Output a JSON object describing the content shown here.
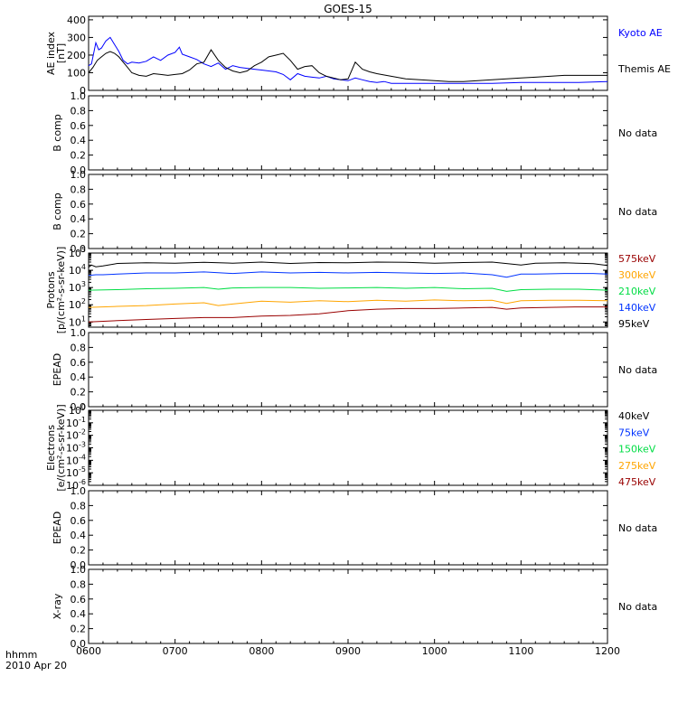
{
  "title": "GOES-15",
  "time_axis": {
    "label_line1": "hhmm",
    "label_line2": "2010 Apr 20",
    "range": [
      360,
      720
    ],
    "ticks": [
      {
        "value": 360,
        "label": "0600"
      },
      {
        "value": 420,
        "label": "0700"
      },
      {
        "value": 480,
        "label": "0800"
      },
      {
        "value": 540,
        "label": "0900"
      },
      {
        "value": 600,
        "label": "1000"
      },
      {
        "value": 660,
        "label": "1100"
      },
      {
        "value": 720,
        "label": "1200"
      }
    ]
  },
  "colors": {
    "kyoto": "#0000ff",
    "themis": "#000000",
    "p575": "#990000",
    "p300": "#ffa500",
    "p210": "#00dd44",
    "p140": "#0033ff",
    "p95": "#000000",
    "e475": "#990000",
    "e275": "#ffa500",
    "e150": "#00dd44",
    "e75": "#0033ff",
    "e40": "#000000"
  },
  "no_data_label": "No data",
  "chart_data": [
    {
      "id": "ae",
      "type": "line",
      "ylabel": "AE index",
      "ylabel2": "[nT]",
      "ylim": [
        0,
        420
      ],
      "yticks": [
        {
          "value": 0,
          "label": "0"
        },
        {
          "value": 100,
          "label": "100"
        },
        {
          "value": 200,
          "label": "200"
        },
        {
          "value": 300,
          "label": "300"
        },
        {
          "value": 400,
          "label": "400"
        }
      ],
      "series": [
        {
          "name": "Kyoto AE",
          "color_key": "kyoto",
          "x": [
            360,
            362,
            365,
            367,
            369,
            372,
            375,
            378,
            381,
            384,
            387,
            390,
            395,
            400,
            405,
            410,
            415,
            420,
            423,
            425,
            430,
            435,
            440,
            445,
            450,
            455,
            460,
            465,
            470,
            475,
            480,
            485,
            490,
            495,
            500,
            505,
            510,
            515,
            520,
            525,
            530,
            535,
            540,
            545,
            550,
            555,
            560,
            565,
            570,
            580,
            600,
            620,
            640,
            660,
            680,
            700,
            720
          ],
          "y": [
            140,
            150,
            270,
            230,
            240,
            280,
            300,
            260,
            220,
            170,
            150,
            160,
            155,
            165,
            190,
            170,
            200,
            215,
            245,
            205,
            190,
            175,
            150,
            135,
            155,
            120,
            140,
            130,
            125,
            120,
            115,
            110,
            105,
            90,
            60,
            95,
            80,
            75,
            70,
            80,
            65,
            60,
            55,
            70,
            60,
            50,
            45,
            50,
            40,
            40,
            40,
            40,
            40,
            45,
            45,
            45,
            50
          ]
        },
        {
          "name": "Themis AE",
          "color_key": "themis",
          "x": [
            360,
            363,
            366,
            369,
            372,
            375,
            378,
            381,
            384,
            387,
            390,
            395,
            400,
            405,
            410,
            415,
            420,
            425,
            430,
            435,
            440,
            445,
            450,
            455,
            460,
            465,
            470,
            475,
            480,
            485,
            490,
            495,
            500,
            505,
            510,
            515,
            520,
            525,
            530,
            535,
            540,
            545,
            550,
            555,
            560,
            570,
            580,
            590,
            600,
            610,
            620,
            630,
            640,
            650,
            660,
            670,
            680,
            690,
            700,
            710,
            720
          ],
          "y": [
            100,
            130,
            170,
            190,
            210,
            220,
            210,
            190,
            160,
            130,
            100,
            85,
            80,
            95,
            90,
            85,
            90,
            95,
            115,
            150,
            160,
            230,
            170,
            130,
            110,
            100,
            110,
            140,
            160,
            190,
            200,
            210,
            170,
            120,
            135,
            140,
            100,
            80,
            70,
            60,
            65,
            160,
            120,
            105,
            95,
            80,
            65,
            60,
            55,
            50,
            50,
            55,
            60,
            65,
            70,
            75,
            80,
            85,
            85,
            85,
            85
          ]
        }
      ]
    },
    {
      "id": "bcomp1",
      "type": "line",
      "ylabel": "B comp",
      "ylim": [
        0,
        1
      ],
      "yticks": [
        {
          "value": 0.0,
          "label": "0.0"
        },
        {
          "value": 0.2,
          "label": "0.2"
        },
        {
          "value": 0.4,
          "label": "0.4"
        },
        {
          "value": 0.6,
          "label": "0.6"
        },
        {
          "value": 0.8,
          "label": "0.8"
        },
        {
          "value": 1.0,
          "label": "1.0"
        }
      ],
      "series": []
    },
    {
      "id": "bcomp2",
      "type": "line",
      "ylabel": "B comp",
      "ylim": [
        0,
        1
      ],
      "yticks": [
        {
          "value": 0.0,
          "label": "0.0"
        },
        {
          "value": 0.2,
          "label": "0.2"
        },
        {
          "value": 0.4,
          "label": "0.4"
        },
        {
          "value": 0.6,
          "label": "0.6"
        },
        {
          "value": 0.8,
          "label": "0.8"
        },
        {
          "value": 1.0,
          "label": "1.0"
        }
      ],
      "series": []
    },
    {
      "id": "protons",
      "type": "line",
      "log": true,
      "ylabel": "Protons",
      "ylabel2": "[p/(cm²-s-sr-keV)]",
      "ylim": [
        5,
        100000
      ],
      "yticks": [
        {
          "value": 10,
          "base": "10",
          "exp": "1"
        },
        {
          "value": 100,
          "base": "10",
          "exp": "2"
        },
        {
          "value": 1000,
          "base": "10",
          "exp": "3"
        },
        {
          "value": 10000,
          "base": "10",
          "exp": "4"
        },
        {
          "value": 100000,
          "base": "10",
          "exp": "5"
        }
      ],
      "series": [
        {
          "name": "95keV",
          "color_key": "p95",
          "x": [
            360,
            362,
            365,
            370,
            380,
            400,
            420,
            440,
            460,
            480,
            500,
            520,
            540,
            560,
            580,
            600,
            620,
            640,
            660,
            670,
            690,
            710,
            720
          ],
          "y": [
            15000,
            20000,
            16000,
            18000,
            25000,
            27000,
            26000,
            29000,
            26000,
            30000,
            25000,
            28000,
            27000,
            30000,
            29000,
            26000,
            28000,
            30000,
            20000,
            26000,
            27000,
            24000,
            19000
          ]
        },
        {
          "name": "140keV",
          "color_key": "p140",
          "x": [
            360,
            365,
            370,
            380,
            400,
            420,
            440,
            460,
            480,
            500,
            520,
            540,
            560,
            580,
            600,
            620,
            640,
            650,
            660,
            670,
            690,
            710,
            720
          ],
          "y": [
            5000,
            5500,
            5500,
            6000,
            7000,
            7000,
            8000,
            6500,
            8000,
            7000,
            7500,
            7000,
            7500,
            7000,
            6500,
            7000,
            5500,
            4000,
            6000,
            6000,
            6500,
            6500,
            6000
          ]
        },
        {
          "name": "210keV",
          "color_key": "p210",
          "x": [
            360,
            380,
            400,
            420,
            440,
            450,
            460,
            480,
            500,
            520,
            540,
            560,
            580,
            600,
            620,
            640,
            650,
            660,
            680,
            700,
            720
          ],
          "y": [
            700,
            750,
            850,
            900,
            1000,
            800,
            950,
            1000,
            1000,
            900,
            950,
            1000,
            900,
            1000,
            850,
            900,
            600,
            750,
            800,
            800,
            700
          ]
        },
        {
          "name": "300keV",
          "color_key": "p300",
          "x": [
            360,
            380,
            400,
            420,
            440,
            450,
            460,
            480,
            500,
            520,
            540,
            560,
            580,
            600,
            620,
            640,
            650,
            660,
            680,
            700,
            720
          ],
          "y": [
            70,
            80,
            90,
            110,
            130,
            90,
            110,
            160,
            140,
            170,
            150,
            180,
            160,
            190,
            170,
            180,
            120,
            170,
            180,
            180,
            170
          ]
        },
        {
          "name": "575keV",
          "color_key": "p575",
          "x": [
            360,
            380,
            400,
            420,
            440,
            460,
            480,
            500,
            520,
            540,
            560,
            580,
            600,
            620,
            640,
            650,
            660,
            680,
            700,
            720
          ],
          "y": [
            10,
            12,
            14,
            16,
            18,
            18,
            22,
            24,
            30,
            45,
            55,
            60,
            60,
            65,
            70,
            55,
            65,
            70,
            75,
            75
          ]
        }
      ]
    },
    {
      "id": "epead1",
      "type": "line",
      "ylabel": "EPEAD",
      "ylim": [
        0,
        1
      ],
      "yticks": [
        {
          "value": 0.0,
          "label": "0.0"
        },
        {
          "value": 0.2,
          "label": "0.2"
        },
        {
          "value": 0.4,
          "label": "0.4"
        },
        {
          "value": 0.6,
          "label": "0.6"
        },
        {
          "value": 0.8,
          "label": "0.8"
        },
        {
          "value": 1.0,
          "label": "1.0"
        }
      ],
      "series": []
    },
    {
      "id": "electrons",
      "type": "line",
      "log": true,
      "ylabel": "Electrons",
      "ylabel2": "[e/(cm²-s-sr-keV)]",
      "ylim": [
        1e-06,
        1
      ],
      "yticks": [
        {
          "value": 1,
          "base": "10",
          "exp": "0"
        },
        {
          "value": 0.1,
          "base": "10",
          "exp": "-1"
        },
        {
          "value": 0.01,
          "base": "10",
          "exp": "-2"
        },
        {
          "value": 0.001,
          "base": "10",
          "exp": "-3"
        },
        {
          "value": 0.0001,
          "base": "10",
          "exp": "-4"
        },
        {
          "value": 1e-05,
          "base": "10",
          "exp": "-5"
        },
        {
          "value": 1e-06,
          "base": "10",
          "exp": "-6"
        }
      ],
      "series": [
        {
          "name": "475keV",
          "color_key": "e475",
          "x": [],
          "y": []
        },
        {
          "name": "275keV",
          "color_key": "e275",
          "x": [],
          "y": []
        },
        {
          "name": "150keV",
          "color_key": "e150",
          "x": [],
          "y": []
        },
        {
          "name": "75keV",
          "color_key": "e75",
          "x": [],
          "y": []
        },
        {
          "name": "40keV",
          "color_key": "e40",
          "x": [],
          "y": []
        }
      ]
    },
    {
      "id": "epead2",
      "type": "line",
      "ylabel": "EPEAD",
      "ylim": [
        0,
        1
      ],
      "yticks": [
        {
          "value": 0.0,
          "label": "0.0"
        },
        {
          "value": 0.2,
          "label": "0.2"
        },
        {
          "value": 0.4,
          "label": "0.4"
        },
        {
          "value": 0.6,
          "label": "0.6"
        },
        {
          "value": 0.8,
          "label": "0.8"
        },
        {
          "value": 1.0,
          "label": "1.0"
        }
      ],
      "series": []
    },
    {
      "id": "xray",
      "type": "line",
      "ylabel": "X-ray",
      "ylim": [
        0,
        1
      ],
      "yticks": [
        {
          "value": 0.0,
          "label": "0.0"
        },
        {
          "value": 0.2,
          "label": "0.2"
        },
        {
          "value": 0.4,
          "label": "0.4"
        },
        {
          "value": 0.6,
          "label": "0.6"
        },
        {
          "value": 0.8,
          "label": "0.8"
        },
        {
          "value": 1.0,
          "label": "1.0"
        }
      ],
      "series": []
    }
  ]
}
